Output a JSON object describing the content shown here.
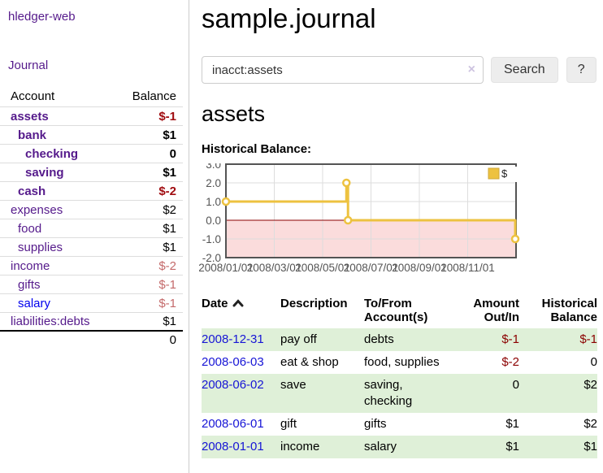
{
  "colors": {
    "link_purple": "#551a8b",
    "link_blue": "#1715d6",
    "negative_strong": "#a00c10",
    "negative_soft": "#c46a6b",
    "negative_cell": "#8b0000",
    "series_gold": "#edc240",
    "row_stripe_green": "#dff0d8",
    "negative_region_pink": "#fbdcdc",
    "zero_line_red": "#8b0000",
    "grid_gray": "#dddddd",
    "plot_border": "#545454"
  },
  "sidebar": {
    "app_title": "hledger-web",
    "journal_label": "Journal",
    "accounts_table": {
      "headers": {
        "account": "Account",
        "balance": "Balance"
      },
      "rows": [
        {
          "name": "assets",
          "balance": "$-1",
          "depth": 0,
          "bold": true,
          "link": "purple",
          "bal_class": "neg-strong b"
        },
        {
          "name": "bank",
          "balance": "$1",
          "depth": 1,
          "bold": true,
          "link": "purple",
          "bal_class": "b"
        },
        {
          "name": "checking",
          "balance": "0",
          "depth": 2,
          "bold": true,
          "link": "purple",
          "bal_class": "b"
        },
        {
          "name": "saving",
          "balance": "$1",
          "depth": 2,
          "bold": true,
          "link": "purple",
          "bal_class": "b"
        },
        {
          "name": "cash",
          "balance": "$-2",
          "depth": 1,
          "bold": true,
          "link": "purple",
          "bal_class": "neg-strong b"
        },
        {
          "name": "expenses",
          "balance": "$2",
          "depth": 0,
          "bold": false,
          "link": "purple",
          "bal_class": ""
        },
        {
          "name": "food",
          "balance": "$1",
          "depth": 1,
          "bold": false,
          "link": "purple",
          "bal_class": ""
        },
        {
          "name": "supplies",
          "balance": "$1",
          "depth": 1,
          "bold": false,
          "link": "purple",
          "bal_class": ""
        },
        {
          "name": "income",
          "balance": "$-2",
          "depth": 0,
          "bold": false,
          "link": "purple",
          "bal_class": "neg-soft"
        },
        {
          "name": "gifts",
          "balance": "$-1",
          "depth": 1,
          "bold": false,
          "link": "purple",
          "bal_class": "neg-soft"
        },
        {
          "name": "salary",
          "balance": "$-1",
          "depth": 1,
          "bold": false,
          "link": "blue",
          "bal_class": "neg-soft"
        },
        {
          "name": "liabilities:debts",
          "balance": "$1",
          "depth": 0,
          "bold": false,
          "link": "purple",
          "bal_class": ""
        }
      ],
      "total": "0"
    }
  },
  "main": {
    "title": "sample.journal",
    "search": {
      "value": "inacct:assets",
      "clear_icon": "×",
      "button_label": "Search",
      "help_label": "?"
    },
    "account_heading": "assets",
    "chart_label": "Historical Balance:"
  },
  "chart_data": {
    "type": "line",
    "step": true,
    "title": "Historical Balance",
    "legend": [
      {
        "label": "$",
        "color": "#edc240"
      }
    ],
    "legend_position": "top-right",
    "grid": true,
    "ylim": [
      -2.0,
      3.0
    ],
    "y_ticks": [
      "3.0",
      "2.0",
      "1.0",
      "0.0",
      "-1.0",
      "-2.0"
    ],
    "x_range": [
      "2008-01-01",
      "2009-01-01"
    ],
    "x_ticks": [
      "2008/01/01",
      "2008/03/01",
      "2008/05/01",
      "2008/07/01",
      "2008/09/01",
      "2008/11/01"
    ],
    "x_tick_month_offsets": [
      0,
      2,
      4,
      6,
      8,
      10
    ],
    "series": [
      {
        "name": "$",
        "color": "#edc240",
        "points": [
          {
            "date": "2008-01-01",
            "value": 1.0
          },
          {
            "date": "2008-06-01",
            "value": 2.0
          },
          {
            "date": "2008-06-03",
            "value": 0.0
          },
          {
            "date": "2008-12-31",
            "value": -1.0
          }
        ]
      }
    ],
    "negative_region_shaded": true
  },
  "register": {
    "headers": {
      "date": "Date",
      "description": "Description",
      "tofrom": "To/From Account(s)",
      "amount": "Amount Out/In",
      "balance": "Historical Balance"
    },
    "rows": [
      {
        "date": "2008-12-31",
        "description": "pay off",
        "accounts": "debts",
        "amount": "$-1",
        "balance": "$-1"
      },
      {
        "date": "2008-06-03",
        "description": "eat & shop",
        "accounts": "food, supplies",
        "amount": "$-2",
        "balance": "0"
      },
      {
        "date": "2008-06-02",
        "description": "save",
        "accounts": "saving, checking",
        "amount": "0",
        "balance": "$2"
      },
      {
        "date": "2008-06-01",
        "description": "gift",
        "accounts": "gifts",
        "amount": "$1",
        "balance": "$2"
      },
      {
        "date": "2008-01-01",
        "description": "income",
        "accounts": "salary",
        "amount": "$1",
        "balance": "$1"
      }
    ]
  }
}
